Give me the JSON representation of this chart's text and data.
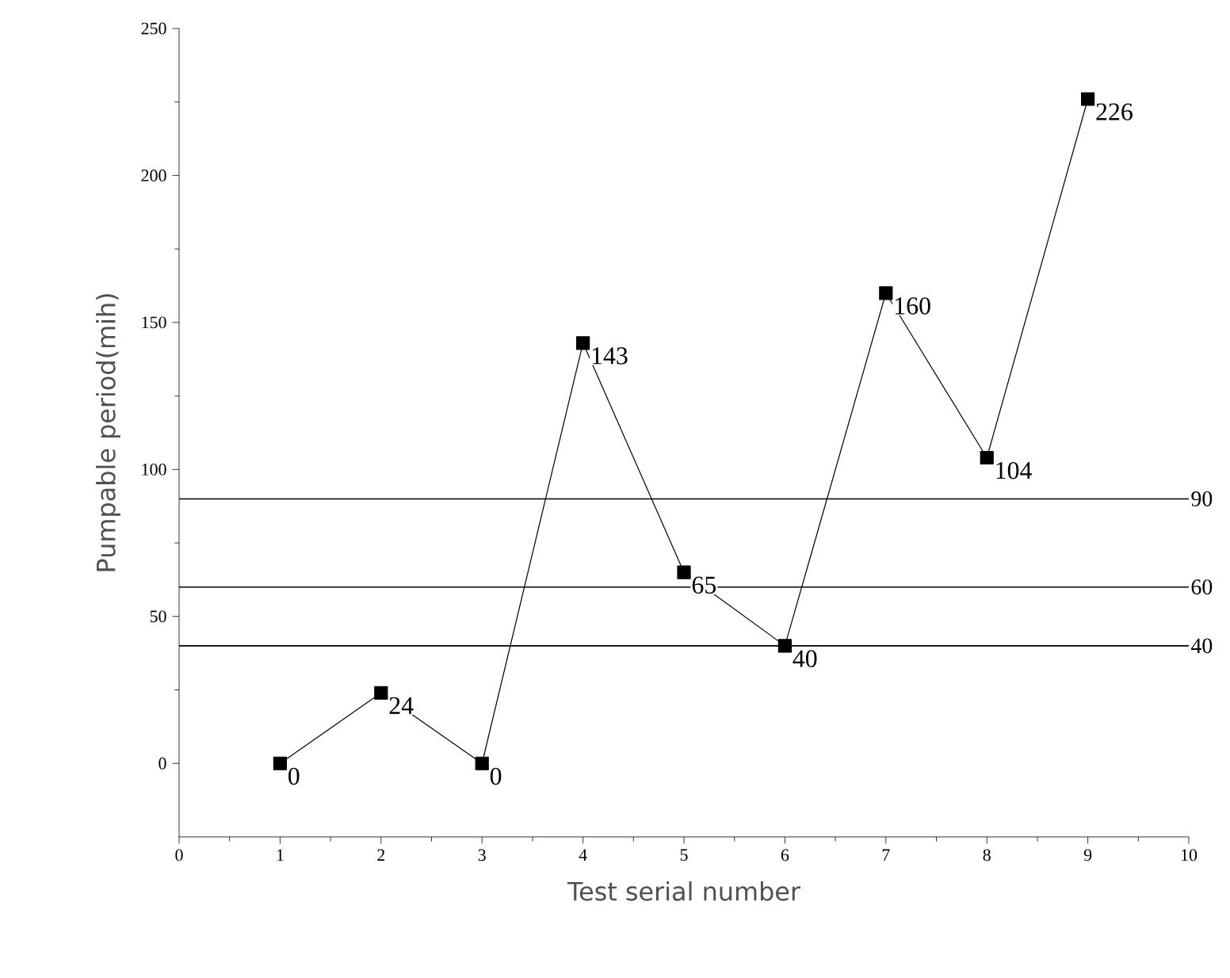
{
  "chart_data": {
    "type": "line",
    "xlabel": "Test serial number",
    "ylabel": "Pumpable period(mih)",
    "x": [
      1,
      2,
      3,
      4,
      5,
      6,
      7,
      8,
      9
    ],
    "values": [
      0,
      24,
      0,
      143,
      65,
      40,
      160,
      104,
      226
    ],
    "color": "#000000",
    "marker": "square",
    "line_style": "solid",
    "data_labels": true,
    "xlim": [
      0,
      10
    ],
    "xticks": [
      0,
      1,
      2,
      3,
      4,
      5,
      6,
      7,
      8,
      9,
      10
    ],
    "ylim": [
      -25,
      250
    ],
    "yticks": [
      0,
      50,
      100,
      150,
      200,
      250
    ],
    "ref_lines": [
      {
        "axis": "y",
        "value": 90,
        "label": "90",
        "color": "#000000"
      },
      {
        "axis": "y",
        "value": 60,
        "label": "60",
        "color": "#000000"
      },
      {
        "axis": "y",
        "value": 40,
        "label": "40",
        "color": "#000000"
      }
    ],
    "grid": false
  }
}
